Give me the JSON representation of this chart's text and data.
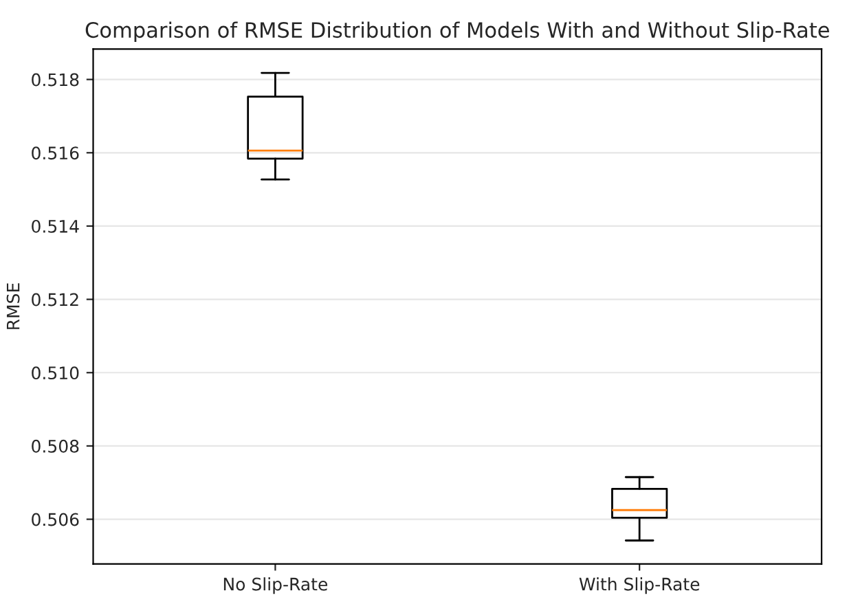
{
  "chart_data": {
    "type": "box",
    "title": "Comparison of RMSE Distribution of Models With and Without Slip-Rate",
    "ylabel": "RMSE",
    "categories": [
      "No Slip-Rate",
      "With Slip-Rate"
    ],
    "boxes": [
      {
        "low": 0.51527,
        "q1": 0.51584,
        "median": 0.51606,
        "q3": 0.51753,
        "high": 0.51818
      },
      {
        "low": 0.50542,
        "q1": 0.50604,
        "median": 0.50625,
        "q3": 0.50683,
        "high": 0.50715
      }
    ],
    "color": "#000000",
    "ylim": [
      0.50478,
      0.51883
    ],
    "yticks": [
      {
        "value": 0.506,
        "label": "0.506"
      },
      {
        "value": 0.508,
        "label": "0.508"
      },
      {
        "value": 0.51,
        "label": "0.510"
      },
      {
        "value": 0.512,
        "label": "0.512"
      },
      {
        "value": 0.514,
        "label": "0.514"
      },
      {
        "value": 0.516,
        "label": "0.516"
      },
      {
        "value": 0.518,
        "label": "0.518"
      }
    ],
    "grid": "y"
  }
}
